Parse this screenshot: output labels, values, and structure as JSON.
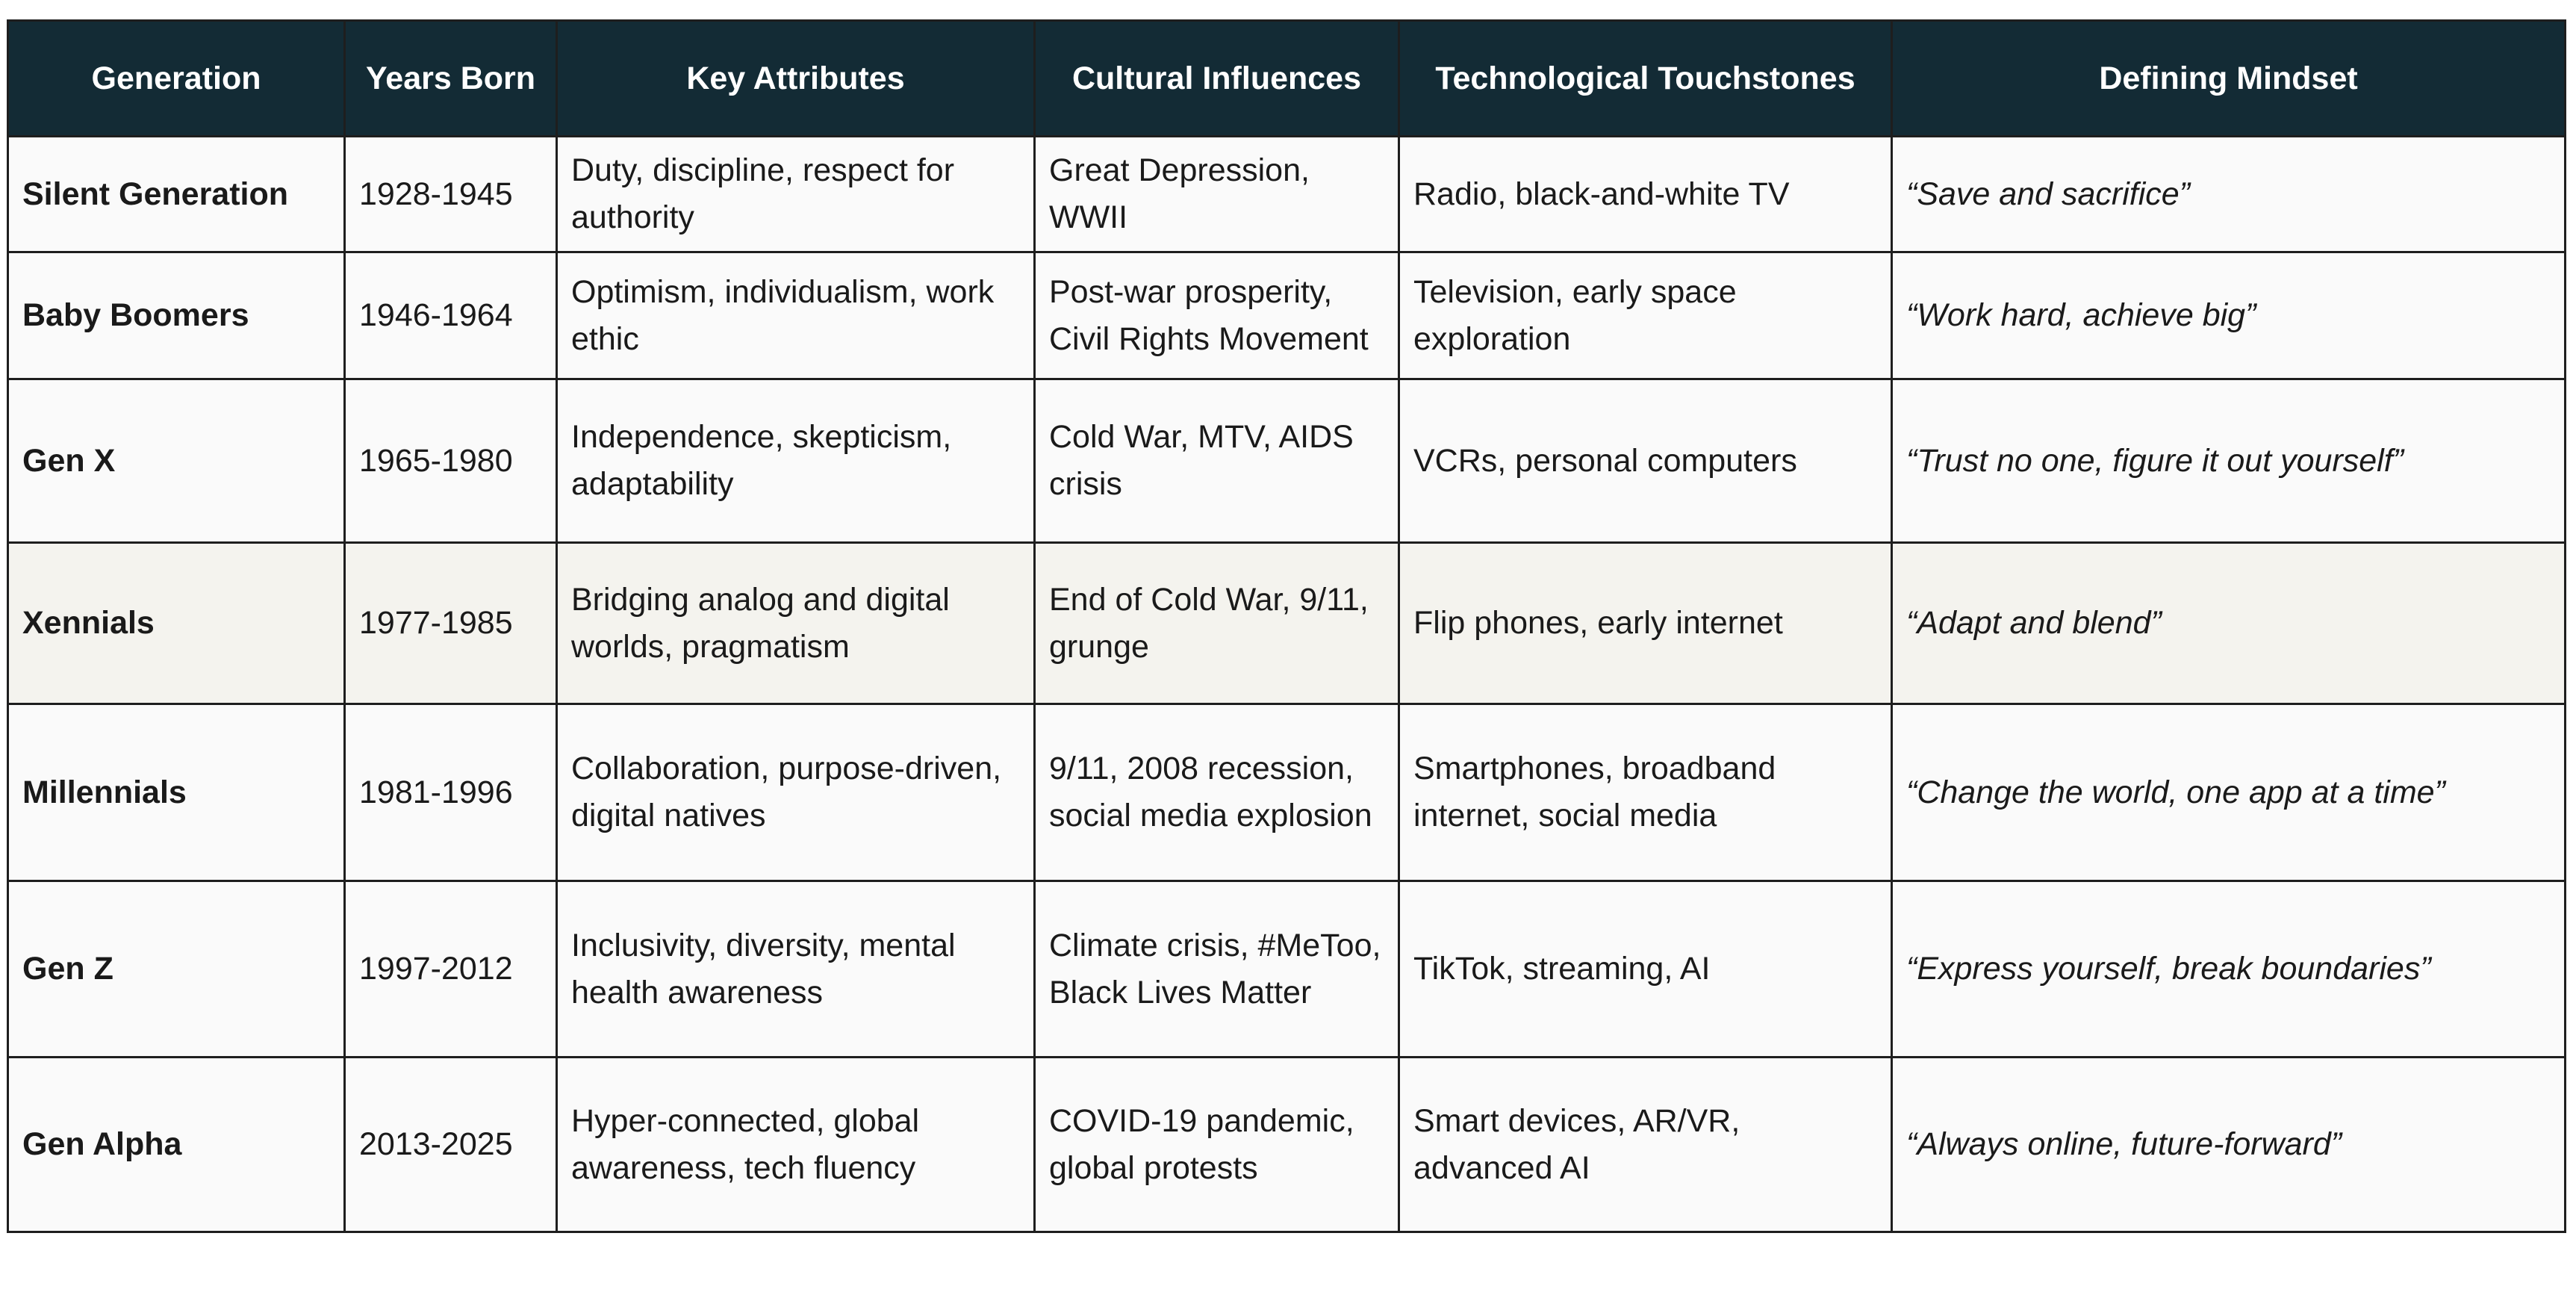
{
  "table": {
    "columns": [
      "Generation",
      "Years Born",
      "Key Attributes",
      "Cultural Influences",
      "Technological Touchstones",
      "Defining Mindset"
    ],
    "rows": [
      [
        "Silent Generation",
        "1928-1945",
        "Duty, discipline, respect for authority",
        "Great Depression, WWII",
        "Radio, black-and-white TV",
        "“Save and sacrifice”"
      ],
      [
        "Baby Boomers",
        "1946-1964",
        "Optimism, individualism, work ethic",
        "Post-war prosperity, Civil Rights Movement",
        "Television, early space exploration",
        "“Work hard, achieve big”"
      ],
      [
        "Gen X",
        "1965-1980",
        "Independence, skepticism, adaptability",
        "Cold War, MTV, AIDS crisis",
        "VCRs, personal computers",
        "“Trust no one, figure it out yourself”"
      ],
      [
        "Xennials",
        "1977-1985",
        "Bridging analog and digital worlds, pragmatism",
        "End of Cold War, 9/11, grunge",
        "Flip phones, early internet",
        "“Adapt and blend”"
      ],
      [
        "Millennials",
        "1981-1996",
        "Collaboration, purpose-driven, digital natives",
        "9/11, 2008 recession, social media explosion",
        "Smartphones, broadband internet, social media",
        "“Change the world, one app at a time”"
      ],
      [
        "Gen Z",
        "1997-2012",
        "Inclusivity, diversity, mental health awareness",
        "Climate crisis, #MeToo, Black Lives Matter",
        "TikTok, streaming, AI",
        "“Express yourself, break boundaries”"
      ],
      [
        "Gen Alpha",
        "2013-2025",
        "Hyper-connected, global awareness, tech fluency",
        "COVID-19 pandemic, global protests",
        "Smart devices, AR/VR, advanced AI",
        "“Always online, future-forward”"
      ]
    ]
  }
}
